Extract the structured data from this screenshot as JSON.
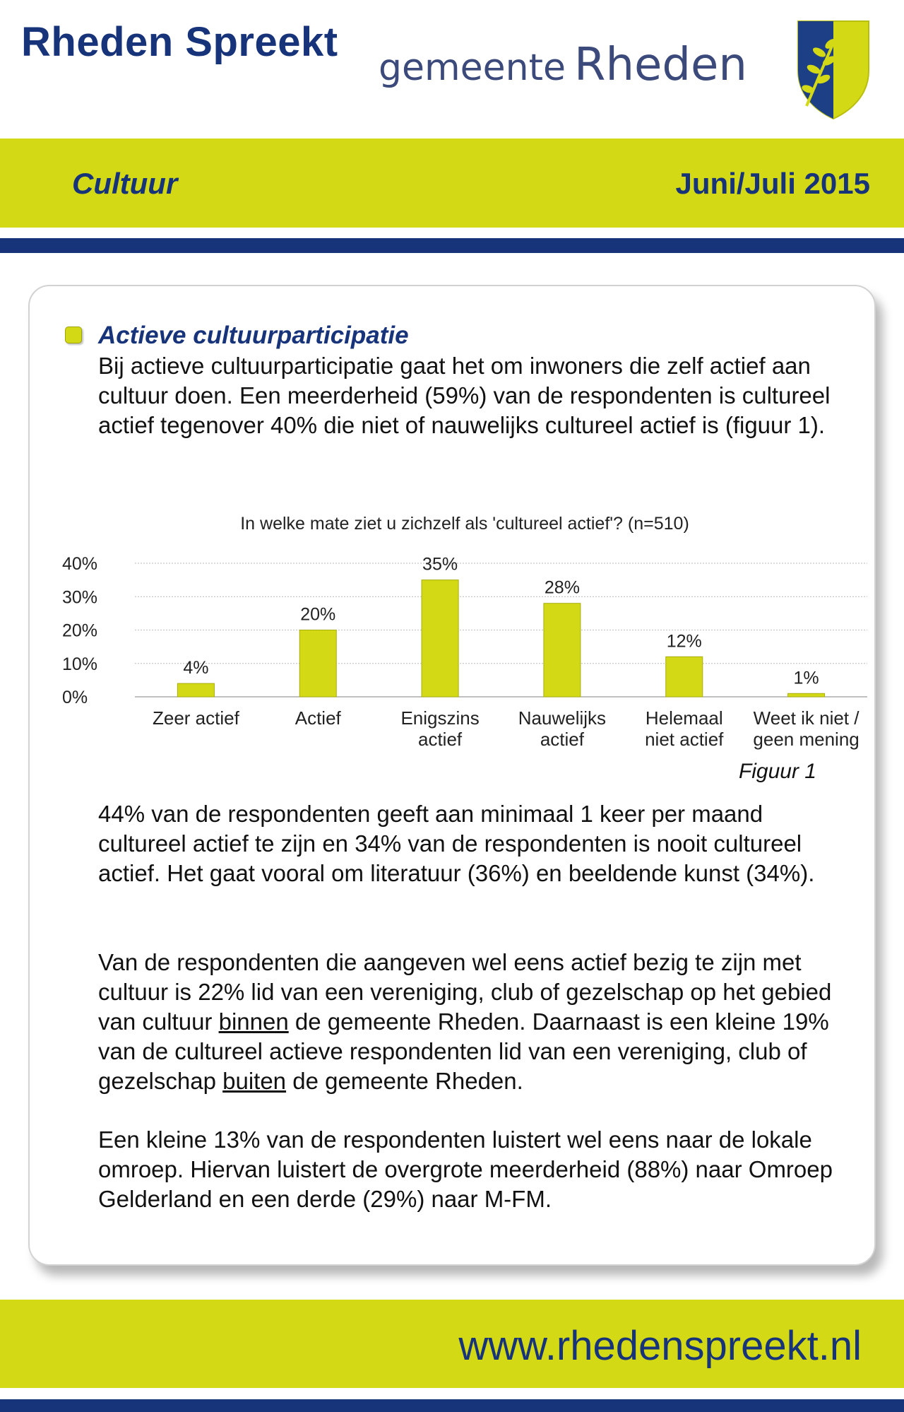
{
  "header": {
    "title": "Rheden Spreekt",
    "logo_small": "gemeente",
    "logo_big": "Rheden",
    "crest_icon": "rheden-crest-icon",
    "colors": {
      "navy": "#17337a",
      "lime": "#d3d914"
    }
  },
  "topic_band": {
    "topic": "Cultuur",
    "period": "Juni/Juli 2015"
  },
  "section": {
    "heading": "Actieve cultuurparticipatie",
    "intro": "Bij actieve cultuurparticipatie gaat het om inwoners die zelf actief aan cultuur doen. Een meerderheid (59%) van de respondenten is cultureel actief tegenover 40% die niet of nauwelijks cultureel actief is (figuur 1).",
    "figure_caption": "Figuur 1",
    "para2": "44% van de respondenten geeft aan minimaal 1 keer per maand cultureel actief te zijn en 34% van de respondenten is nooit cultureel actief. Het gaat vooral om literatuur (36%) en beeldende kunst (34%).",
    "para3": {
      "part1": "Van de respondenten die aangeven wel eens actief bezig te zijn met cultuur is 22% lid van een vereniging, club of gezelschap op het gebied van cultuur ",
      "emph1": "binnen",
      "part2": " de gemeente Rheden. Daarnaast is een kleine 19% van de cultureel actieve respondenten lid van een vereniging, club of gezelschap ",
      "emph2": "buiten",
      "part3": " de gemeente Rheden."
    },
    "para4": "Een kleine 13% van de respondenten luistert wel eens naar de lokale omroep. Hiervan luistert de overgrote meerderheid (88%) naar Omroep Gelderland en een derde (29%) naar M-FM."
  },
  "chart_data": {
    "type": "bar",
    "title": "In welke mate ziet u zichzelf als 'cultureel actief'? (n=510)",
    "categories": [
      [
        "Zeer actief"
      ],
      [
        "Actief"
      ],
      [
        "Enigszins",
        "actief"
      ],
      [
        "Nauwelijks",
        "actief"
      ],
      [
        "Helemaal",
        "niet actief"
      ],
      [
        "Weet ik niet /",
        "geen mening"
      ]
    ],
    "values": [
      4,
      20,
      35,
      28,
      12,
      1
    ],
    "data_labels": [
      "4%",
      "20%",
      "35%",
      "28%",
      "12%",
      "1%"
    ],
    "ylim": [
      0,
      40
    ],
    "yticks": [
      0,
      10,
      20,
      30,
      40
    ],
    "ytick_labels": [
      "0%",
      "10%",
      "20%",
      "30%",
      "40%"
    ],
    "grid": true,
    "bar_color": "#d3d914",
    "bar_edge_color": "#a9ae0c"
  },
  "footer": {
    "website": "www.rhedenspreekt.nl"
  }
}
